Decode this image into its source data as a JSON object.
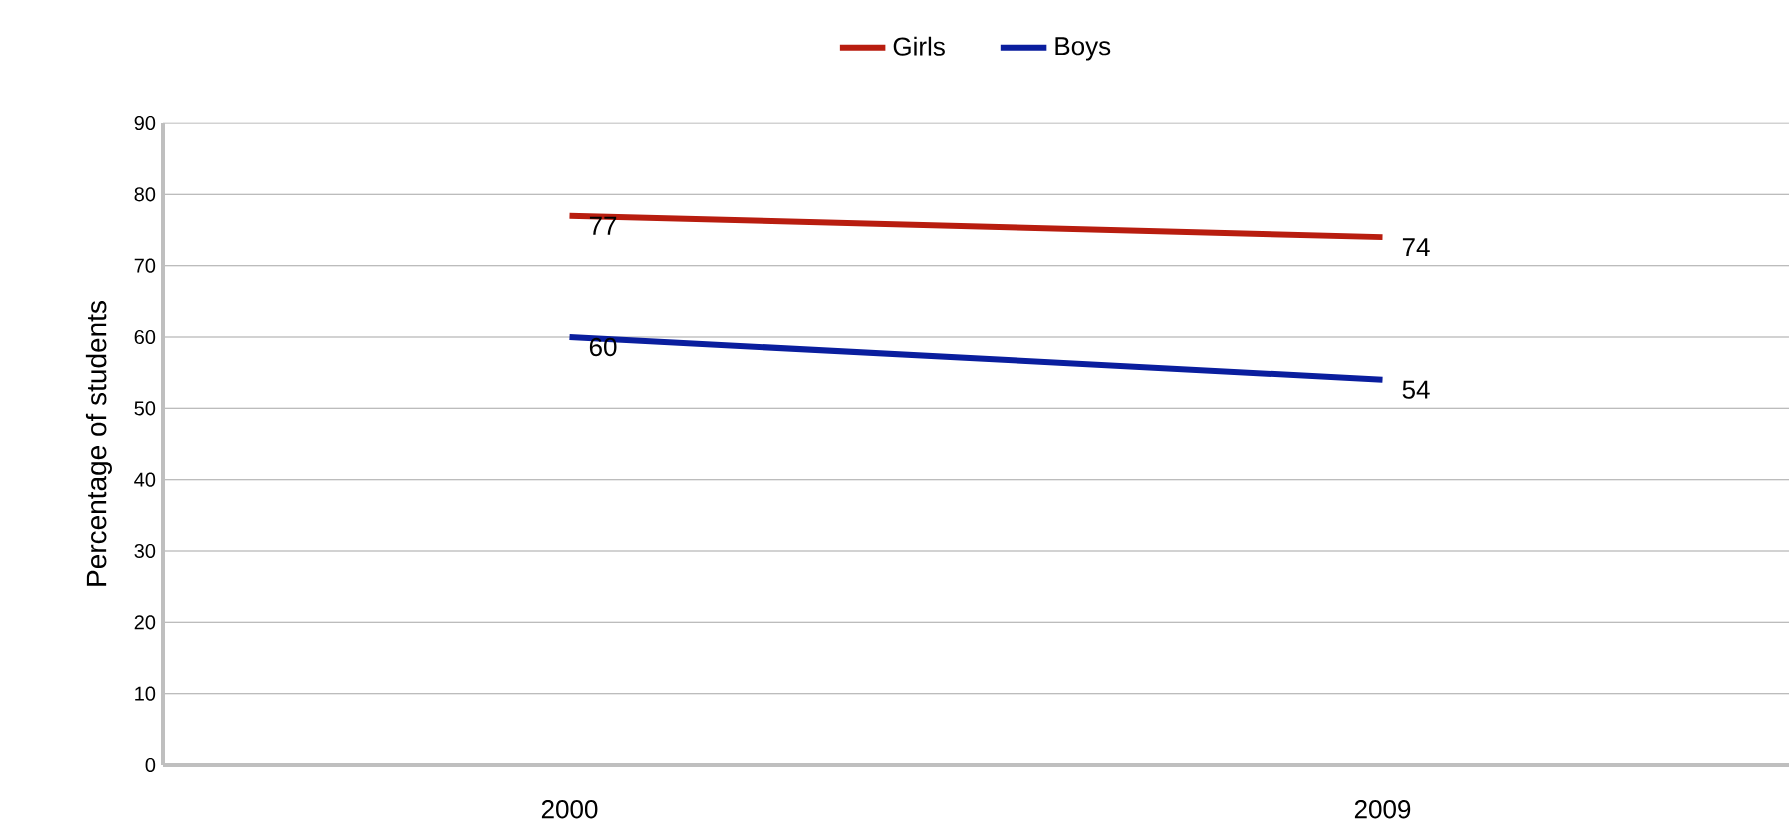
{
  "chart_data": {
    "type": "line",
    "ylabel": "Percentage of students",
    "categories": [
      "2000",
      "2009"
    ],
    "series": [
      {
        "name": "Girls",
        "color": "#b81d0f",
        "values": [
          77,
          74
        ]
      },
      {
        "name": "Boys",
        "color": "#0a1e9e",
        "values": [
          60,
          54
        ]
      }
    ],
    "ylim": [
      0,
      90
    ],
    "yticks": [
      0,
      10,
      20,
      30,
      40,
      50,
      60,
      70,
      80,
      90
    ],
    "grid": "y",
    "legend": "top",
    "data_labels": true,
    "marker": "none",
    "line_style": "solid"
  }
}
